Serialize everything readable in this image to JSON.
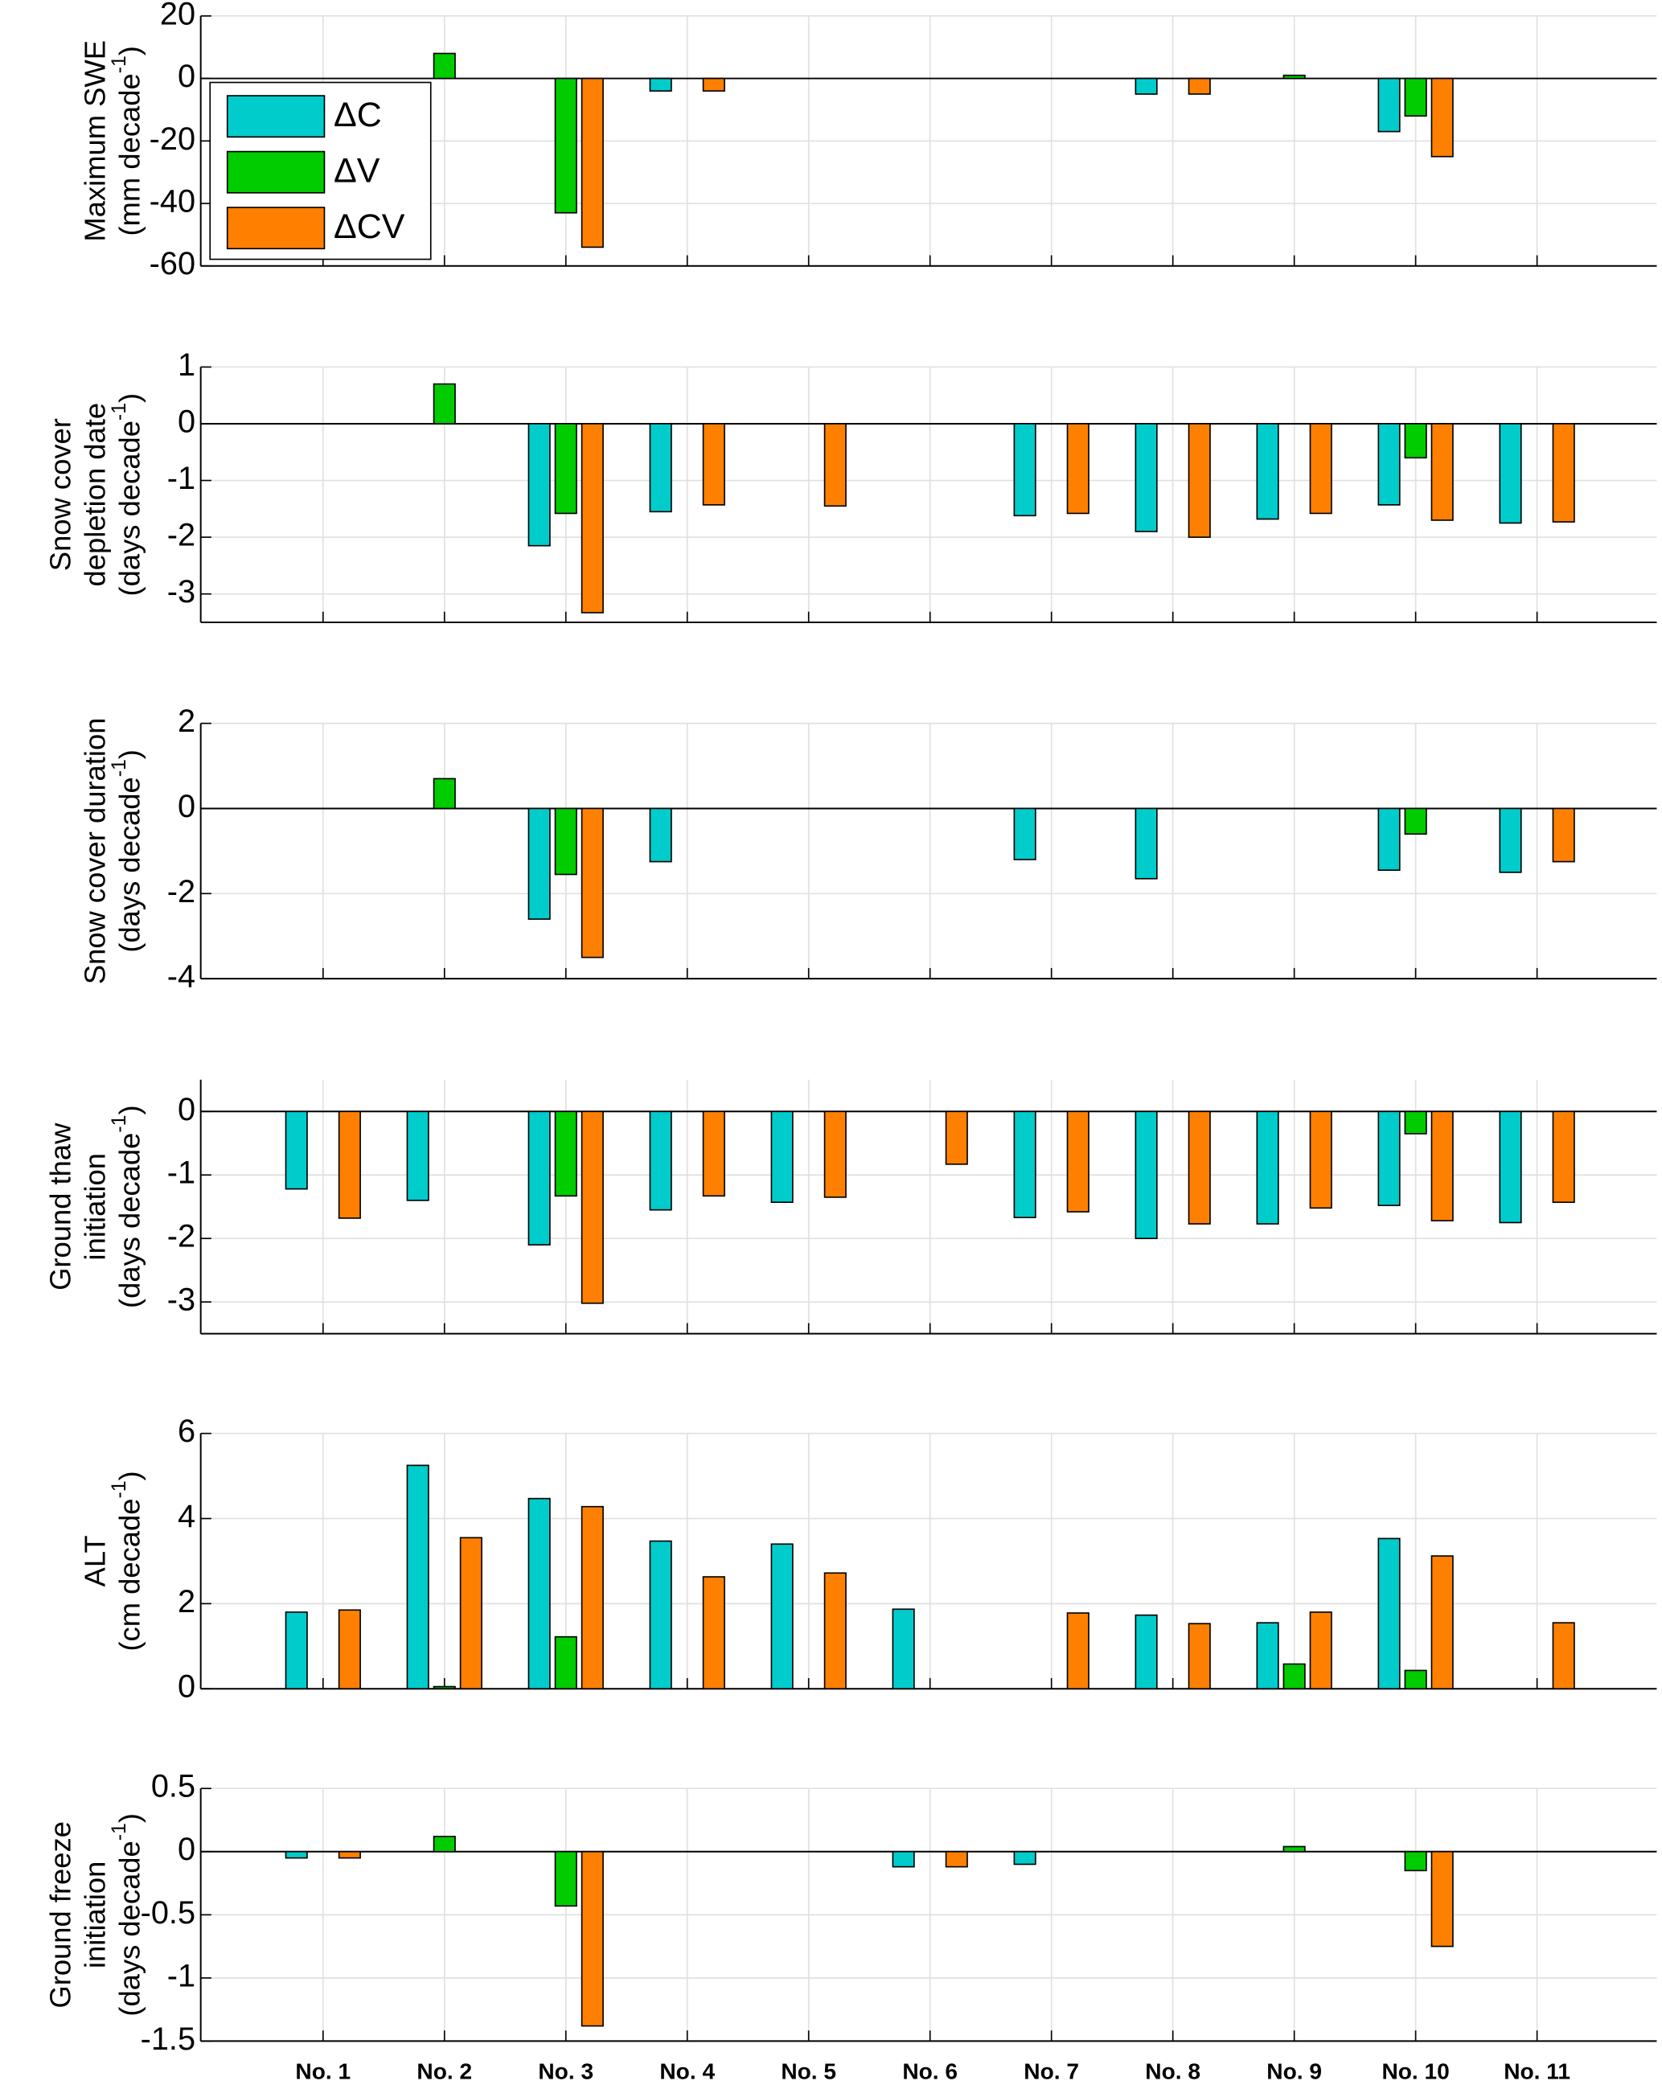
{
  "chart_data": [
    {
      "type": "bar",
      "ylabel": [
        "Maximum SWE"
      ],
      "unit": {
        "text": "(mm decade",
        "sup": "-1",
        "close": ")"
      },
      "ylim": [
        -60,
        20
      ],
      "yticks": [
        -60,
        -40,
        -20,
        0,
        20
      ],
      "grid": true,
      "legend": "upper left",
      "series": [
        {
          "name": "ΔC",
          "color": "#00cccc",
          "values": [
            null,
            null,
            null,
            -4,
            null,
            null,
            null,
            -5,
            null,
            -17,
            null
          ]
        },
        {
          "name": "ΔV",
          "color": "#00cc00",
          "values": [
            null,
            8,
            -43,
            null,
            null,
            null,
            null,
            null,
            1,
            -12,
            null
          ]
        },
        {
          "name": "ΔCV",
          "color": "#ff8000",
          "values": [
            null,
            null,
            -54,
            -4,
            null,
            null,
            null,
            -5,
            null,
            -25,
            null
          ]
        }
      ]
    },
    {
      "type": "bar",
      "ylabel": [
        "Snow cover",
        "depletion date"
      ],
      "unit": {
        "text": "(days decade",
        "sup": "-1",
        "close": ")"
      },
      "ylim": [
        -3.5,
        1
      ],
      "yticks": [
        -3,
        -2,
        -1,
        0,
        1
      ],
      "grid": true,
      "series": [
        {
          "color": "#00cccc",
          "values": [
            null,
            null,
            -2.15,
            -1.55,
            null,
            null,
            -1.62,
            -1.9,
            -1.68,
            -1.43,
            -1.75
          ]
        },
        {
          "color": "#00cc00",
          "values": [
            null,
            0.7,
            -1.58,
            null,
            null,
            null,
            null,
            null,
            null,
            -0.6,
            null
          ]
        },
        {
          "color": "#ff8000",
          "values": [
            null,
            null,
            -3.33,
            -1.43,
            -1.45,
            null,
            -1.58,
            -2.0,
            -1.58,
            -1.7,
            -1.73
          ]
        }
      ]
    },
    {
      "type": "bar",
      "ylabel": [
        "Snow cover  duration"
      ],
      "unit": {
        "text": "(days decade",
        "sup": "-1",
        "close": ")"
      },
      "ylim": [
        -4,
        2
      ],
      "yticks": [
        -4,
        -2,
        0,
        2
      ],
      "grid": true,
      "series": [
        {
          "color": "#00cccc",
          "values": [
            null,
            null,
            -2.6,
            -1.25,
            null,
            null,
            -1.2,
            -1.65,
            null,
            -1.45,
            -1.5
          ]
        },
        {
          "color": "#00cc00",
          "values": [
            null,
            0.7,
            -1.55,
            null,
            null,
            null,
            null,
            null,
            null,
            -0.6,
            null
          ]
        },
        {
          "color": "#ff8000",
          "values": [
            null,
            null,
            -3.5,
            null,
            null,
            null,
            null,
            null,
            null,
            null,
            -1.25
          ]
        }
      ]
    },
    {
      "type": "bar",
      "ylabel": [
        "Ground  thaw",
        "initiation"
      ],
      "unit": {
        "text": "(days decade",
        "sup": "-1",
        "close": ")"
      },
      "ylim": [
        -3.5,
        0.5
      ],
      "yticks": [
        -3,
        -2,
        -1,
        0
      ],
      "grid": true,
      "series": [
        {
          "color": "#00cccc",
          "values": [
            -1.22,
            -1.4,
            -2.1,
            -1.55,
            -1.43,
            null,
            -1.67,
            -2.0,
            -1.77,
            -1.48,
            -1.75
          ]
        },
        {
          "color": "#00cc00",
          "values": [
            null,
            null,
            -1.33,
            null,
            null,
            null,
            null,
            null,
            null,
            -0.35,
            null
          ]
        },
        {
          "color": "#ff8000",
          "values": [
            -1.68,
            null,
            -3.02,
            -1.33,
            -1.35,
            -0.83,
            -1.58,
            -1.77,
            -1.52,
            -1.72,
            -1.43
          ]
        }
      ]
    },
    {
      "type": "bar",
      "ylabel": [
        "ALT"
      ],
      "unit": {
        "text": "(cm decade",
        "sup": "-1",
        "close": ")"
      },
      "ylim": [
        0,
        6
      ],
      "yticks": [
        0,
        2,
        4,
        6
      ],
      "grid": true,
      "series": [
        {
          "color": "#00cccc",
          "values": [
            1.8,
            5.25,
            4.47,
            3.47,
            3.4,
            1.87,
            null,
            1.73,
            1.55,
            3.53,
            null
          ]
        },
        {
          "color": "#00cc00",
          "values": [
            null,
            0.05,
            1.22,
            null,
            null,
            null,
            null,
            null,
            0.58,
            0.43,
            null
          ]
        },
        {
          "color": "#ff8000",
          "values": [
            1.85,
            3.55,
            4.28,
            2.63,
            2.72,
            null,
            1.78,
            1.53,
            1.8,
            3.12,
            1.55
          ]
        }
      ]
    },
    {
      "type": "bar",
      "ylabel": [
        "Ground freeze",
        "initiation"
      ],
      "unit": {
        "text": "(days decade",
        "sup": "-1",
        "close": ")"
      },
      "ylim": [
        -1.5,
        0.5
      ],
      "yticks": [
        -1.5,
        -1,
        -0.5,
        0,
        0.5
      ],
      "grid": true,
      "categories": [
        "No. 1",
        "No. 2",
        "No. 3",
        "No. 4",
        "No. 5",
        "No. 6",
        "No. 7",
        "No. 8",
        "No. 9",
        "No. 10",
        "No. 11"
      ],
      "series": [
        {
          "color": "#00cccc",
          "values": [
            -0.05,
            null,
            null,
            null,
            null,
            -0.12,
            -0.1,
            null,
            null,
            null,
            null
          ]
        },
        {
          "color": "#00cc00",
          "values": [
            null,
            0.12,
            -0.43,
            null,
            null,
            null,
            null,
            null,
            0.04,
            -0.15,
            null
          ]
        },
        {
          "color": "#ff8000",
          "values": [
            -0.05,
            null,
            -1.38,
            null,
            null,
            -0.12,
            null,
            null,
            null,
            -0.75,
            null
          ]
        }
      ]
    }
  ]
}
